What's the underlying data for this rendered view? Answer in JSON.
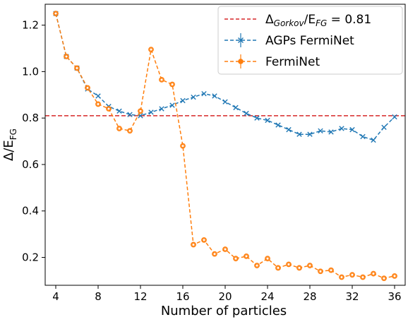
{
  "chart_data": {
    "type": "line",
    "title": "",
    "xlabel": "Number of particles",
    "ylabel": "Δ/E_FG",
    "xlim": [
      3,
      37
    ],
    "ylim": [
      0.08,
      1.29
    ],
    "xticks": [
      4,
      8,
      12,
      16,
      20,
      24,
      28,
      32,
      36
    ],
    "yticks": [
      0.2,
      0.4,
      0.6,
      0.8,
      1.0,
      1.2
    ],
    "xtick_labels": [
      "4",
      "8",
      "12",
      "16",
      "20",
      "24",
      "28",
      "32",
      "36"
    ],
    "ytick_labels": [
      "0.2",
      "0.4",
      "0.6",
      "0.8",
      "1.0",
      "1.2"
    ],
    "grid": false,
    "legend_position": "top-right",
    "reference_line": {
      "label": "Δ_Gorkov/E_FG = 0.81",
      "label_main": "Δ",
      "label_sub1": "Gorkov",
      "label_mid": "/E",
      "label_sub2": "FG",
      "label_end": " = 0.81",
      "y": 0.81,
      "color": "#d62728",
      "style": "dashed"
    },
    "series": [
      {
        "name": "AGPs FermiNet",
        "color": "#1f77b4",
        "marker": "x",
        "x": [
          4,
          5,
          6,
          7,
          8,
          9,
          10,
          11,
          12,
          13,
          14,
          15,
          16,
          17,
          18,
          19,
          20,
          21,
          22,
          23,
          24,
          25,
          26,
          27,
          28,
          29,
          30,
          31,
          32,
          33,
          34,
          35,
          36
        ],
        "y": [
          1.25,
          1.065,
          1.015,
          0.925,
          0.895,
          0.85,
          0.83,
          0.815,
          0.81,
          0.825,
          0.84,
          0.855,
          0.875,
          0.89,
          0.905,
          0.895,
          0.87,
          0.845,
          0.82,
          0.8,
          0.79,
          0.77,
          0.75,
          0.73,
          0.73,
          0.745,
          0.74,
          0.755,
          0.75,
          0.72,
          0.705,
          0.76,
          0.805
        ]
      },
      {
        "name": "FermiNet",
        "color": "#ff7f0e",
        "marker": "o",
        "x": [
          4,
          5,
          6,
          7,
          8,
          9,
          10,
          11,
          12,
          13,
          14,
          15,
          16,
          17,
          18,
          19,
          20,
          21,
          22,
          23,
          24,
          25,
          26,
          27,
          28,
          29,
          30,
          31,
          32,
          33,
          34,
          35,
          36
        ],
        "y": [
          1.25,
          1.065,
          1.015,
          0.93,
          0.86,
          0.84,
          0.755,
          0.745,
          0.83,
          1.095,
          0.965,
          0.945,
          0.68,
          0.255,
          0.275,
          0.215,
          0.235,
          0.195,
          0.205,
          0.165,
          0.195,
          0.155,
          0.17,
          0.155,
          0.165,
          0.14,
          0.145,
          0.115,
          0.125,
          0.115,
          0.13,
          0.11,
          0.12
        ]
      }
    ]
  }
}
